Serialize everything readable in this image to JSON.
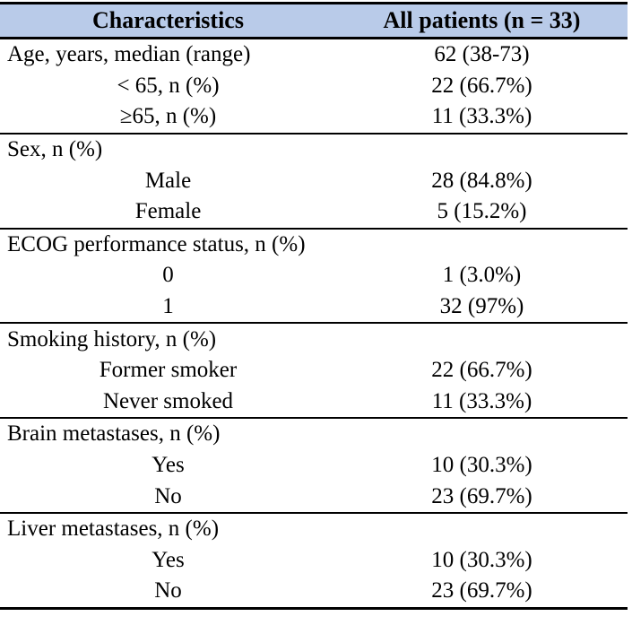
{
  "table": {
    "title": "patient-characteristics-table",
    "colors": {
      "header_bg": "#b9cbe9",
      "border": "#000000",
      "text": "#000000"
    },
    "header": {
      "col1": "Characteristics",
      "col2": "All patients (n = 33)"
    },
    "sections": [
      {
        "rows": [
          {
            "label": "Age, years, median (range)",
            "value": "62 (38-73)",
            "indent": false
          },
          {
            "label": "< 65, n (%)",
            "value": "22 (66.7%)",
            "indent": true
          },
          {
            "label": "≥65, n (%)",
            "value": "11 (33.3%)",
            "indent": true
          }
        ]
      },
      {
        "rows": [
          {
            "label": "Sex, n (%)",
            "value": "",
            "indent": false
          },
          {
            "label": "Male",
            "value": "28 (84.8%)",
            "indent": true
          },
          {
            "label": "Female",
            "value": "5 (15.2%)",
            "indent": true
          }
        ]
      },
      {
        "rows": [
          {
            "label": "ECOG performance status, n (%)",
            "value": "",
            "indent": false
          },
          {
            "label": "0",
            "value": "1 (3.0%)",
            "indent": true
          },
          {
            "label": "1",
            "value": "32 (97%)",
            "indent": true
          }
        ]
      },
      {
        "rows": [
          {
            "label": "Smoking history, n (%)",
            "value": "",
            "indent": false
          },
          {
            "label": "Former smoker",
            "value": "22 (66.7%)",
            "indent": true
          },
          {
            "label": "Never smoked",
            "value": "11 (33.3%)",
            "indent": true
          }
        ]
      },
      {
        "rows": [
          {
            "label": "Brain metastases, n (%)",
            "value": "",
            "indent": false
          },
          {
            "label": "Yes",
            "value": "10 (30.3%)",
            "indent": true
          },
          {
            "label": "No",
            "value": "23 (69.7%)",
            "indent": true
          }
        ]
      },
      {
        "rows": [
          {
            "label": "Liver metastases, n (%)",
            "value": "",
            "indent": false
          },
          {
            "label": "Yes",
            "value": "10 (30.3%)",
            "indent": true
          },
          {
            "label": "No",
            "value": "23 (69.7%)",
            "indent": true
          }
        ]
      }
    ]
  }
}
